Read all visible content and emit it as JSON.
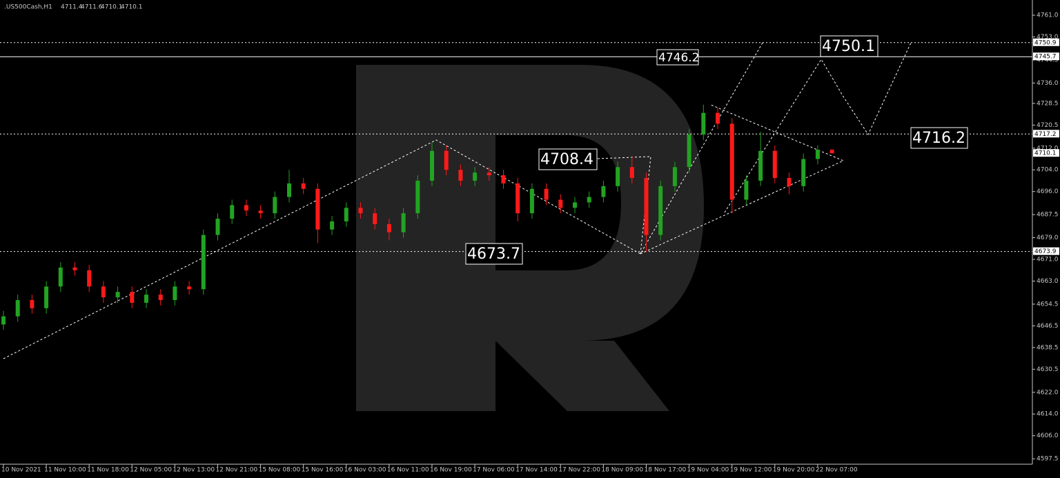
{
  "chart_data": {
    "type": "candlestick",
    "title": ".US500Cash,H1",
    "categories": [
      "10 Nov 2021",
      null,
      null,
      "11 Nov 10:00",
      null,
      null,
      "11 Nov 18:00",
      null,
      null,
      "12 Nov 05:00",
      null,
      null,
      "12 Nov 13:00",
      null,
      null,
      "12 Nov 21:00",
      null,
      null,
      "15 Nov 08:00",
      null,
      null,
      "15 Nov 16:00",
      null,
      null,
      "16 Nov 03:00",
      null,
      null,
      "16 Nov 11:00",
      null,
      null,
      "16 Nov 19:00",
      null,
      null,
      "17 Nov 06:00",
      null,
      null,
      "17 Nov 14:00",
      null,
      null,
      "17 Nov 22:00",
      null,
      null,
      "18 Nov 09:00",
      null,
      null,
      "18 Nov 17:00",
      null,
      null,
      "19 Nov 04:00",
      null,
      null,
      "19 Nov 12:00",
      null,
      null,
      "19 Nov 20:00",
      null,
      null,
      "22 Nov 07:00",
      null
    ],
    "open": [
      4647,
      4650,
      4656,
      4653,
      4661,
      4668,
      4667,
      4661,
      4657,
      4659,
      4655,
      4658,
      4656,
      4661,
      4660,
      4680,
      4686,
      4691,
      4689,
      4688,
      4694,
      4699,
      4697,
      4682,
      4685,
      4690,
      4688,
      4684,
      4681,
      4688,
      4700,
      4711,
      4704,
      4700,
      4703,
      4702,
      4699,
      4688,
      4697,
      4693,
      4690,
      4692,
      4694,
      4698,
      4705,
      4701,
      4680,
      4698,
      4705,
      4717,
      4725,
      4721,
      4693,
      4700,
      4711,
      4701,
      4698,
      4708,
      4711.4
    ],
    "high": [
      4652,
      4658,
      4658,
      4663,
      4670,
      4670,
      4669,
      4663,
      4661,
      4661,
      4660,
      4660,
      4663,
      4663,
      4682,
      4688,
      4693,
      4693,
      4691,
      4696,
      4704,
      4701,
      4699,
      4687,
      4692,
      4692,
      4690,
      4686,
      4690,
      4702,
      4714,
      4713,
      4706,
      4705,
      4705,
      4704,
      4701,
      4699,
      4699,
      4695,
      4694,
      4696,
      4700,
      4707,
      4709,
      4703,
      4700,
      4707,
      4719,
      4728,
      4727,
      4723,
      4702,
      4718,
      4713,
      4703,
      4710,
      4713,
      4711.6
    ],
    "low": [
      4645,
      4648,
      4651,
      4651,
      4659,
      4665,
      4659,
      4655,
      4655,
      4653,
      4653,
      4654,
      4654,
      4658,
      4658,
      4678,
      4684,
      4687,
      4686,
      4686,
      4692,
      4695,
      4677,
      4680,
      4683,
      4686,
      4682,
      4678,
      4679,
      4686,
      4698,
      4702,
      4698,
      4698,
      4700,
      4697,
      4685,
      4686,
      4691,
      4688,
      4688,
      4690,
      4692,
      4696,
      4699,
      4673.7,
      4678,
      4696,
      4703,
      4715,
      4719,
      4688,
      4691,
      4698,
      4699,
      4695,
      4696,
      4706,
      4710.1
    ],
    "close": [
      4650,
      4656,
      4653,
      4661,
      4668,
      4667,
      4661,
      4657,
      4659,
      4655,
      4658,
      4656,
      4661,
      4660,
      4680,
      4686,
      4691,
      4689,
      4688,
      4694,
      4699,
      4697,
      4682,
      4685,
      4690,
      4688,
      4684,
      4681,
      4688,
      4700,
      4711,
      4704,
      4700,
      4703,
      4702,
      4699,
      4688,
      4697,
      4693,
      4690,
      4692,
      4694,
      4698,
      4705,
      4701,
      4680,
      4698,
      4705,
      4717,
      4725,
      4721,
      4693,
      4700,
      4711,
      4701,
      4698,
      4708,
      4711.4,
      4710.1
    ],
    "up_color": "#22a322",
    "down_color": "#ff1a1a",
    "ylim": [
      4595.5,
      4766.6
    ],
    "yticks": [
      {
        "value": 4761,
        "label": "4761.0"
      },
      {
        "value": 4753,
        "label": "4753.0"
      },
      {
        "value": 4744.5,
        "label": "4744.5"
      },
      {
        "value": 4736,
        "label": "4736.0"
      },
      {
        "value": 4728.5,
        "label": "4728.5"
      },
      {
        "value": 4720.5,
        "label": "4720.5"
      },
      {
        "value": 4712,
        "label": "4712.0"
      },
      {
        "value": 4704,
        "label": "4704.0"
      },
      {
        "value": 4696,
        "label": "4696.0"
      },
      {
        "value": 4687.5,
        "label": "4687.5"
      },
      {
        "value": 4679,
        "label": "4679.0"
      },
      {
        "value": 4671,
        "label": "4671.0"
      },
      {
        "value": 4663,
        "label": "4663.0"
      },
      {
        "value": 4654.5,
        "label": "4654.5"
      },
      {
        "value": 4646.5,
        "label": "4646.5"
      },
      {
        "value": 4638.5,
        "label": "4638.5"
      },
      {
        "value": 4630.5,
        "label": "4630.5"
      },
      {
        "value": 4622,
        "label": "4622.0"
      },
      {
        "value": 4614,
        "label": "4614.0"
      },
      {
        "value": 4606,
        "label": "4606.0"
      },
      {
        "value": 4597.5,
        "label": "4597.5"
      }
    ],
    "dotted_levels": [
      4750.9,
      4717.2,
      4673.9
    ],
    "solid_level": 4745.7,
    "annotations": [
      "4746.2",
      "4750.1",
      "4708.4",
      "4716.2",
      "4673.7"
    ]
  }
}
